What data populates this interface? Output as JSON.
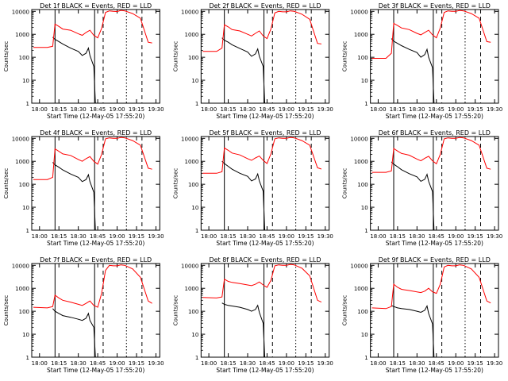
{
  "chart_data": [
    {
      "type": "line",
      "title": "Det 1f BLACK = Events, RED = LLD",
      "xlabel": "Start Time (12-May-05 17:55:20)",
      "ylabel": "Counts/sec",
      "x_ticks": [
        "18:00",
        "18:15",
        "18:30",
        "18:45",
        "19:00",
        "19:15",
        "19:30"
      ],
      "y_ticks": [
        "1",
        "10",
        "100",
        "1000",
        "10000"
      ],
      "yscale": "log",
      "ylim": [
        1,
        12000
      ],
      "series": [
        {
          "color": "#000000",
          "x": [
            18.17,
            18.2,
            18.25,
            18.3,
            18.4,
            18.5,
            18.55,
            18.6,
            18.63,
            18.65,
            18.7,
            18.72
          ],
          "y": [
            750,
            600,
            480,
            380,
            250,
            180,
            120,
            150,
            250,
            120,
            40,
            1
          ]
        },
        {
          "color": "#ff0000",
          "x": [
            17.92,
            18.1,
            18.17,
            18.2,
            18.25,
            18.3,
            18.4,
            18.5,
            18.55,
            18.6,
            18.65,
            18.7,
            18.75,
            18.8,
            18.85,
            18.9,
            18.95,
            19.0,
            19.05,
            19.1,
            19.2,
            19.3,
            19.4,
            19.45
          ],
          "y": [
            270,
            270,
            300,
            2800,
            2200,
            1700,
            1500,
            1050,
            900,
            1200,
            1500,
            900,
            700,
            1800,
            9000,
            10500,
            10000,
            9800,
            11000,
            10500,
            8000,
            5000,
            450,
            420
          ]
        }
      ]
    },
    {
      "type": "line",
      "title": "Det 2f BLACK = Events, RED = LLD",
      "xlabel": "Start Time (12-May-05 17:55:20)",
      "ylabel": "Counts/sec",
      "x_ticks": [
        "18:00",
        "18:15",
        "18:30",
        "18:45",
        "19:00",
        "19:15",
        "19:30"
      ],
      "y_ticks": [
        "1",
        "10",
        "100",
        "1000",
        "10000"
      ],
      "yscale": "log",
      "ylim": [
        1,
        12000
      ],
      "series": [
        {
          "color": "#000000",
          "x": [
            18.17,
            18.2,
            18.25,
            18.3,
            18.4,
            18.5,
            18.55,
            18.6,
            18.63,
            18.65,
            18.7,
            18.72
          ],
          "y": [
            700,
            550,
            450,
            350,
            240,
            170,
            110,
            140,
            230,
            110,
            40,
            1
          ]
        },
        {
          "color": "#ff0000",
          "x": [
            17.92,
            18.1,
            18.17,
            18.2,
            18.25,
            18.3,
            18.4,
            18.5,
            18.55,
            18.6,
            18.65,
            18.7,
            18.75,
            18.8,
            18.85,
            18.9,
            18.95,
            19.0,
            19.05,
            19.1,
            19.2,
            19.3,
            19.4,
            19.45
          ],
          "y": [
            180,
            180,
            250,
            2600,
            2100,
            1600,
            1400,
            1000,
            850,
            1100,
            1400,
            850,
            650,
            1700,
            8500,
            10000,
            9500,
            9500,
            10500,
            10000,
            7500,
            4500,
            400,
            380
          ]
        }
      ]
    },
    {
      "type": "line",
      "title": "Det 3f BLACK = Events, RED = LLD",
      "xlabel": "Start Time (12-May-05 17:55:20)",
      "ylabel": "Counts/sec",
      "x_ticks": [
        "18:00",
        "18:15",
        "18:30",
        "18:45",
        "19:00",
        "19:15",
        "19:30"
      ],
      "y_ticks": [
        "1",
        "10",
        "100",
        "1000",
        "10000"
      ],
      "yscale": "log",
      "ylim": [
        1,
        12000
      ],
      "series": [
        {
          "color": "#000000",
          "x": [
            18.17,
            18.2,
            18.25,
            18.3,
            18.4,
            18.5,
            18.55,
            18.6,
            18.63,
            18.65,
            18.7,
            18.72
          ],
          "y": [
            650,
            500,
            400,
            320,
            220,
            160,
            100,
            130,
            220,
            100,
            35,
            1
          ]
        },
        {
          "color": "#ff0000",
          "x": [
            17.92,
            18.1,
            18.17,
            18.2,
            18.25,
            18.3,
            18.4,
            18.5,
            18.55,
            18.6,
            18.65,
            18.7,
            18.75,
            18.8,
            18.85,
            18.9,
            18.95,
            19.0,
            19.05,
            19.1,
            19.2,
            19.3,
            19.4,
            19.45
          ],
          "y": [
            90,
            90,
            150,
            3000,
            2400,
            1900,
            1600,
            1100,
            950,
            1200,
            1500,
            950,
            700,
            1900,
            9000,
            10500,
            10000,
            10000,
            11000,
            10500,
            8000,
            5000,
            480,
            450
          ]
        }
      ]
    },
    {
      "type": "line",
      "title": "Det 4f BLACK = Events, RED = LLD",
      "xlabel": "Start Time (12-May-05 17:55:20)",
      "ylabel": "Counts/sec",
      "x_ticks": [
        "18:00",
        "18:15",
        "18:30",
        "18:45",
        "19:00",
        "19:15",
        "19:30"
      ],
      "y_ticks": [
        "1",
        "10",
        "100",
        "1000",
        "10000"
      ],
      "yscale": "log",
      "ylim": [
        1,
        12000
      ],
      "series": [
        {
          "color": "#000000",
          "x": [
            18.17,
            18.2,
            18.25,
            18.3,
            18.4,
            18.5,
            18.55,
            18.6,
            18.63,
            18.65,
            18.7,
            18.72
          ],
          "y": [
            900,
            700,
            550,
            420,
            280,
            200,
            130,
            160,
            260,
            130,
            45,
            1
          ]
        },
        {
          "color": "#ff0000",
          "x": [
            17.92,
            18.1,
            18.17,
            18.2,
            18.25,
            18.3,
            18.4,
            18.5,
            18.55,
            18.6,
            18.65,
            18.7,
            18.75,
            18.8,
            18.85,
            18.9,
            18.95,
            19.0,
            19.05,
            19.1,
            19.2,
            19.3,
            19.4,
            19.45
          ],
          "y": [
            160,
            160,
            200,
            3500,
            2700,
            2100,
            1800,
            1200,
            1000,
            1300,
            1600,
            1000,
            750,
            2000,
            9500,
            10500,
            10000,
            10000,
            11000,
            10500,
            8000,
            5000,
            500,
            450
          ]
        }
      ]
    },
    {
      "type": "line",
      "title": "Det 5f BLACK = Events, RED = LLD",
      "xlabel": "Start Time (12-May-05 17:55:20)",
      "ylabel": "Counts/sec",
      "x_ticks": [
        "18:00",
        "18:15",
        "18:30",
        "18:45",
        "19:00",
        "19:15",
        "19:30"
      ],
      "y_ticks": [
        "1",
        "10",
        "100",
        "1000",
        "10000"
      ],
      "yscale": "log",
      "ylim": [
        1,
        12000
      ],
      "series": [
        {
          "color": "#000000",
          "x": [
            18.17,
            18.2,
            18.25,
            18.3,
            18.4,
            18.5,
            18.55,
            18.6,
            18.63,
            18.65,
            18.7,
            18.72
          ],
          "y": [
            1000,
            800,
            600,
            450,
            300,
            220,
            140,
            170,
            280,
            140,
            50,
            1
          ]
        },
        {
          "color": "#ff0000",
          "x": [
            17.92,
            18.1,
            18.17,
            18.2,
            18.25,
            18.3,
            18.4,
            18.5,
            18.55,
            18.6,
            18.65,
            18.7,
            18.75,
            18.8,
            18.85,
            18.9,
            18.95,
            19.0,
            19.05,
            19.1,
            19.2,
            19.3,
            19.4,
            19.45
          ],
          "y": [
            300,
            300,
            350,
            3800,
            3000,
            2300,
            1900,
            1300,
            1100,
            1400,
            1700,
            1100,
            800,
            2100,
            9500,
            10500,
            10000,
            10000,
            11000,
            10500,
            8000,
            5000,
            520,
            460
          ]
        }
      ]
    },
    {
      "type": "line",
      "title": "Det 6f BLACK = Events, RED = LLD",
      "xlabel": "Start Time (12-May-05 17:55:20)",
      "ylabel": "Counts/sec",
      "x_ticks": [
        "18:00",
        "18:15",
        "18:30",
        "18:45",
        "19:00",
        "19:15",
        "19:30"
      ],
      "y_ticks": [
        "1",
        "10",
        "100",
        "1000",
        "10000"
      ],
      "yscale": "log",
      "ylim": [
        1,
        12000
      ],
      "series": [
        {
          "color": "#000000",
          "x": [
            18.17,
            18.2,
            18.25,
            18.3,
            18.4,
            18.5,
            18.55,
            18.6,
            18.63,
            18.65,
            18.7,
            18.72
          ],
          "y": [
            950,
            750,
            580,
            430,
            290,
            210,
            135,
            165,
            270,
            135,
            48,
            1
          ]
        },
        {
          "color": "#ff0000",
          "x": [
            17.92,
            18.1,
            18.17,
            18.2,
            18.25,
            18.3,
            18.4,
            18.5,
            18.55,
            18.6,
            18.65,
            18.7,
            18.75,
            18.8,
            18.85,
            18.9,
            18.95,
            19.0,
            19.05,
            19.1,
            19.2,
            19.3,
            19.4,
            19.45
          ],
          "y": [
            330,
            330,
            380,
            3600,
            2800,
            2200,
            1850,
            1250,
            1050,
            1350,
            1650,
            1050,
            780,
            2000,
            9500,
            10500,
            10000,
            10000,
            11000,
            10500,
            8000,
            5000,
            500,
            450
          ]
        }
      ]
    },
    {
      "type": "line",
      "title": "Det 7f BLACK = Events, RED = LLD",
      "xlabel": "Start Time (12-May-05 17:55:20)",
      "ylabel": "Counts/sec",
      "x_ticks": [
        "18:00",
        "18:15",
        "18:30",
        "18:45",
        "19:00",
        "19:15",
        "19:30"
      ],
      "y_ticks": [
        "1",
        "10",
        "100",
        "1000",
        "10000"
      ],
      "yscale": "log",
      "ylim": [
        1,
        12000
      ],
      "series": [
        {
          "color": "#000000",
          "x": [
            18.17,
            18.2,
            18.25,
            18.3,
            18.4,
            18.5,
            18.55,
            18.6,
            18.63,
            18.65,
            18.7,
            18.72
          ],
          "y": [
            130,
            100,
            80,
            65,
            55,
            45,
            40,
            50,
            80,
            40,
            20,
            1
          ]
        },
        {
          "color": "#ff0000",
          "x": [
            17.92,
            18.1,
            18.17,
            18.2,
            18.25,
            18.3,
            18.4,
            18.5,
            18.55,
            18.6,
            18.65,
            18.7,
            18.75,
            18.8,
            18.85,
            18.9,
            18.95,
            19.0,
            19.05,
            19.1,
            19.2,
            19.3,
            19.4,
            19.45
          ],
          "y": [
            150,
            140,
            160,
            500,
            380,
            300,
            250,
            200,
            180,
            220,
            280,
            180,
            150,
            600,
            6000,
            10000,
            9500,
            9500,
            10500,
            10000,
            7000,
            3000,
            280,
            220
          ]
        }
      ]
    },
    {
      "type": "line",
      "title": "Det 8f BLACK = Events, RED = LLD",
      "xlabel": "Start Time (12-May-05 17:55:20)",
      "ylabel": "Counts/sec",
      "x_ticks": [
        "18:00",
        "18:15",
        "18:30",
        "18:45",
        "19:00",
        "19:15",
        "19:30"
      ],
      "y_ticks": [
        "1",
        "10",
        "100",
        "1000",
        "10000"
      ],
      "yscale": "log",
      "ylim": [
        1,
        12000
      ],
      "series": [
        {
          "color": "#000000",
          "x": [
            18.17,
            18.2,
            18.25,
            18.3,
            18.4,
            18.5,
            18.55,
            18.6,
            18.63,
            18.65,
            18.7,
            18.72
          ],
          "y": [
            230,
            200,
            180,
            170,
            150,
            120,
            100,
            120,
            180,
            90,
            30,
            1
          ]
        },
        {
          "color": "#ff0000",
          "x": [
            17.92,
            18.1,
            18.17,
            18.2,
            18.25,
            18.3,
            18.4,
            18.5,
            18.55,
            18.6,
            18.65,
            18.7,
            18.75,
            18.8,
            18.85,
            18.9,
            18.95,
            19.0,
            19.05,
            19.1,
            19.2,
            19.3,
            19.4,
            19.45
          ],
          "y": [
            400,
            380,
            420,
            2500,
            2000,
            1800,
            1600,
            1400,
            1300,
            1500,
            1900,
            1400,
            1100,
            2200,
            9500,
            10500,
            10000,
            10000,
            11000,
            10500,
            7500,
            3500,
            300,
            250
          ]
        }
      ]
    },
    {
      "type": "line",
      "title": "Det 9f BLACK = Events, RED = LLD",
      "xlabel": "Start Time (12-May-05 17:55:20)",
      "ylabel": "Counts/sec",
      "x_ticks": [
        "18:00",
        "18:15",
        "18:30",
        "18:45",
        "19:00",
        "19:15",
        "19:30"
      ],
      "y_ticks": [
        "1",
        "10",
        "100",
        "1000",
        "10000"
      ],
      "yscale": "log",
      "ylim": [
        1,
        12000
      ],
      "series": [
        {
          "color": "#000000",
          "x": [
            18.17,
            18.2,
            18.25,
            18.3,
            18.4,
            18.5,
            18.55,
            18.6,
            18.63,
            18.65,
            18.7,
            18.72
          ],
          "y": [
            180,
            160,
            140,
            130,
            120,
            100,
            90,
            110,
            170,
            80,
            28,
            1
          ]
        },
        {
          "color": "#ff0000",
          "x": [
            17.92,
            18.1,
            18.17,
            18.2,
            18.25,
            18.3,
            18.4,
            18.5,
            18.55,
            18.6,
            18.65,
            18.7,
            18.75,
            18.8,
            18.85,
            18.9,
            18.95,
            19.0,
            19.05,
            19.1,
            19.2,
            19.3,
            19.4,
            19.45
          ],
          "y": [
            140,
            130,
            160,
            1500,
            1100,
            900,
            800,
            700,
            650,
            750,
            1000,
            700,
            600,
            1500,
            8500,
            10000,
            9500,
            9500,
            10500,
            10000,
            7000,
            3000,
            280,
            230
          ]
        }
      ]
    }
  ]
}
